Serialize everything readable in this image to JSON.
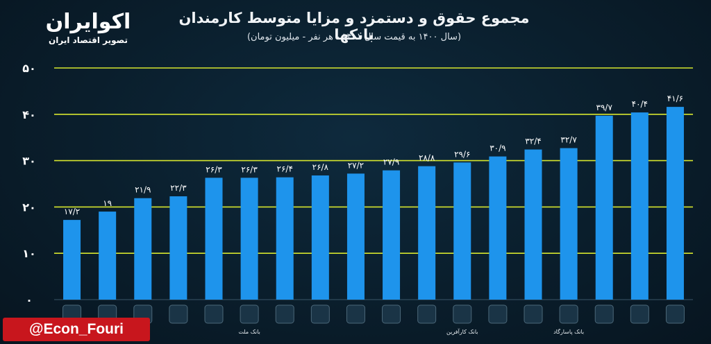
{
  "brand": {
    "name": "اکوایران",
    "tagline": "تصویر اقتصاد ایران"
  },
  "colors": {
    "bar": "#1e94ec",
    "grid": "#d6e62e",
    "background": "#0b2233"
  },
  "chart_data": {
    "type": "bar",
    "title": "مجموع حقوق و دستمزد و مزایا متوسط کارمندان بانکها",
    "subtitle": "(سال ۱۴۰۰ به قیمت سال ۱۴۰۱ - هر نفر - میلیون تومان)",
    "xlabel": "",
    "ylabel": "",
    "ylim": [
      0,
      50
    ],
    "yticks": [
      0,
      10,
      20,
      30,
      40,
      50
    ],
    "ytick_labels": [
      "۰",
      "۱۰",
      "۲۰",
      "۳۰",
      "۴۰",
      "۵۰"
    ],
    "grid": true,
    "values": [
      17.2,
      19,
      21.9,
      22.3,
      26.3,
      26.3,
      26.4,
      26.8,
      27.2,
      27.9,
      28.8,
      29.6,
      30.9,
      32.4,
      32.7,
      39.7,
      40.4,
      41.6
    ],
    "data_labels": [
      "۱۷/۲",
      "۱۹",
      "۲۱/۹",
      "۲۲/۳",
      "۲۶/۳",
      "۲۶/۳",
      "۲۶/۴",
      "۲۶/۸",
      "۲۷/۲",
      "۲۷/۹",
      "۲۸/۸",
      "۲۹/۶",
      "۳۰/۹",
      "۳۲/۴",
      "۳۲/۷",
      "۳۹/۷",
      "۴۰/۴",
      "۴۱/۶"
    ],
    "categories": [
      "",
      "",
      "",
      "",
      "",
      "بانک ملت",
      "",
      "",
      "",
      "",
      "",
      "بانک کارآفرین",
      "",
      "",
      "بانک پاسارگاد",
      "",
      "",
      ""
    ]
  },
  "footer": {
    "handle": "@Econ_Fouri"
  }
}
